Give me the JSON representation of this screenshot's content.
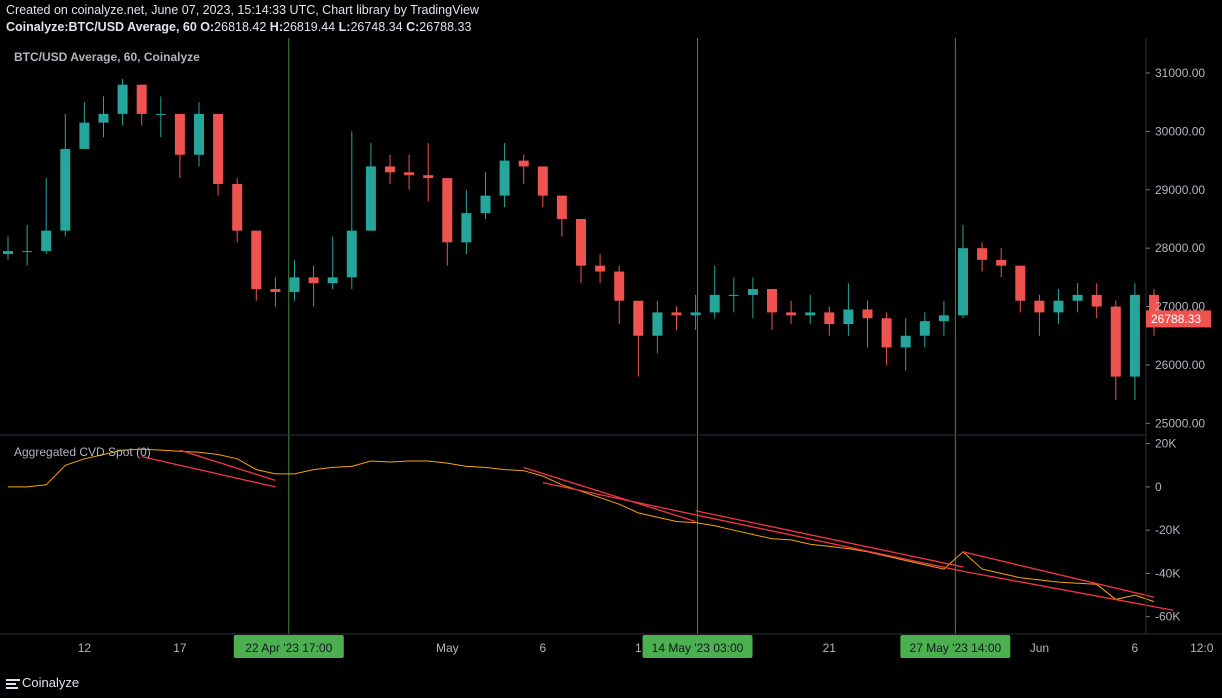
{
  "header": {
    "created_line": "Created on coinalyze.net, June 07, 2023, 15:14:33 UTC, Chart library by TradingView",
    "symbol": "Coinalyze:BTC/USD Average, 60",
    "o_label": "O:",
    "o_value": "26818.42",
    "h_label": "H:",
    "h_value": "26819.44",
    "l_label": "L:",
    "l_value": "26748.34",
    "c_label": "C:",
    "c_value": "26788.33"
  },
  "colors": {
    "background": "#000000",
    "up": "#26a69a",
    "down": "#ef5350",
    "cvd_line": "#f7a600",
    "trendline": "#f23645",
    "vline": "#4caf50",
    "date_badge": "#4caf50",
    "price_badge": "#ef5350"
  },
  "footer": {
    "logo_text": "Coinalyze",
    "logo_icon": "hamburger-icon"
  },
  "chart_data": [
    {
      "type": "candlestick",
      "title": "BTC/USD Average, 60, Coinalyze",
      "ylim": [
        24800,
        31600
      ],
      "y_ticks": [
        "31000.00",
        "30000.00",
        "29000.00",
        "28000.00",
        "27000.00",
        "26000.00",
        "25000.00"
      ],
      "last_price_label": "26788.33",
      "ohlc_last": {
        "open": 26818.42,
        "high": 26819.44,
        "low": 26748.34,
        "close": 26788.33
      },
      "x": [
        "Apr 8",
        "Apr 9",
        "Apr 10",
        "Apr 11",
        "Apr 12",
        "Apr 13",
        "Apr 14",
        "Apr 15",
        "Apr 16",
        "Apr 17",
        "Apr 18",
        "Apr 19",
        "Apr 20",
        "Apr 21",
        "Apr 22",
        "Apr 23",
        "Apr 24",
        "Apr 25",
        "Apr 26",
        "Apr 27",
        "Apr 28",
        "Apr 29",
        "Apr 30",
        "May 1",
        "May 2",
        "May 3",
        "May 4",
        "May 5",
        "May 6",
        "May 7",
        "May 8",
        "May 9",
        "May 10",
        "May 11",
        "May 12",
        "May 13",
        "May 14",
        "May 15",
        "May 16",
        "May 17",
        "May 18",
        "May 19",
        "May 20",
        "May 21",
        "May 22",
        "May 23",
        "May 24",
        "May 25",
        "May 26",
        "May 27",
        "May 28",
        "May 29",
        "May 30",
        "May 31",
        "Jun 1",
        "Jun 2",
        "Jun 3",
        "Jun 4",
        "Jun 5",
        "Jun 6",
        "Jun 7"
      ],
      "close": [
        27950,
        27950,
        28300,
        29700,
        30150,
        30300,
        30800,
        30300,
        30300,
        29600,
        30300,
        29100,
        28300,
        27300,
        27250,
        27500,
        27400,
        27500,
        28300,
        29400,
        29300,
        29250,
        29200,
        28100,
        28600,
        28900,
        29500,
        29400,
        28900,
        28500,
        27700,
        27600,
        27100,
        26500,
        26900,
        26850,
        26900,
        27200,
        27200,
        27300,
        26900,
        26850,
        26900,
        26700,
        26950,
        26800,
        26300,
        26500,
        26750,
        26850,
        28000,
        27800,
        27700,
        27100,
        26900,
        27100,
        27200,
        27000,
        25800,
        27200,
        26788
      ],
      "high": [
        28200,
        28400,
        29200,
        30300,
        30500,
        30600,
        30900,
        30800,
        30600,
        30300,
        30500,
        30300,
        29200,
        28100,
        27500,
        27800,
        27700,
        28200,
        30000,
        29800,
        29600,
        29600,
        29800,
        28700,
        29000,
        29300,
        29800,
        29600,
        29400,
        28900,
        28200,
        27900,
        27700,
        26900,
        27100,
        27000,
        27200,
        27700,
        27500,
        27500,
        27300,
        27100,
        27200,
        27000,
        27400,
        27100,
        26900,
        26800,
        26900,
        27100,
        28400,
        28100,
        28000,
        27700,
        27200,
        27300,
        27400,
        27400,
        27100,
        27400,
        27300
      ],
      "low": [
        27800,
        27700,
        27900,
        28200,
        29700,
        29900,
        30100,
        30100,
        29900,
        29200,
        29400,
        28900,
        28100,
        27100,
        27000,
        27100,
        27000,
        27300,
        27300,
        29000,
        29100,
        29000,
        28800,
        27700,
        27900,
        28500,
        28700,
        29100,
        28700,
        28200,
        27400,
        27400,
        26700,
        25800,
        26200,
        26600,
        26600,
        26800,
        26900,
        26800,
        26600,
        26700,
        26700,
        26500,
        26500,
        26300,
        26000,
        25900,
        26300,
        26500,
        26800,
        27600,
        27500,
        26900,
        26500,
        26700,
        26900,
        26800,
        25400,
        25400,
        26500
      ],
      "vertical_markers": [
        "22 Apr '23   17:00",
        "14 May '23   03:00",
        "27 May '23   14:00"
      ]
    },
    {
      "type": "line",
      "title": "Aggregated CVD Spot (0)",
      "ylim": [
        -68000,
        24000
      ],
      "y_ticks": [
        "20K",
        "0",
        "-20K",
        "-40K",
        "-60K"
      ],
      "series": [
        {
          "name": "Aggregated CVD Spot",
          "x": [
            "Apr 8",
            "Apr 9",
            "Apr 10",
            "Apr 11",
            "Apr 12",
            "Apr 13",
            "Apr 14",
            "Apr 15",
            "Apr 16",
            "Apr 17",
            "Apr 18",
            "Apr 19",
            "Apr 20",
            "Apr 21",
            "Apr 22",
            "Apr 23",
            "Apr 24",
            "Apr 25",
            "Apr 26",
            "Apr 27",
            "Apr 28",
            "Apr 29",
            "Apr 30",
            "May 1",
            "May 2",
            "May 3",
            "May 4",
            "May 5",
            "May 6",
            "May 7",
            "May 8",
            "May 9",
            "May 10",
            "May 11",
            "May 12",
            "May 13",
            "May 14",
            "May 15",
            "May 16",
            "May 17",
            "May 18",
            "May 19",
            "May 20",
            "May 21",
            "May 22",
            "May 23",
            "May 24",
            "May 25",
            "May 26",
            "May 27",
            "May 28",
            "May 29",
            "May 30",
            "May 31",
            "Jun 1",
            "Jun 2",
            "Jun 3",
            "Jun 4",
            "Jun 5",
            "Jun 6",
            "Jun 7"
          ],
          "values": [
            0,
            0,
            1000,
            10000,
            13000,
            15000,
            17000,
            17500,
            17000,
            16500,
            16000,
            15000,
            13000,
            8000,
            6000,
            6000,
            8000,
            9000,
            9500,
            12000,
            11500,
            12000,
            12000,
            11000,
            9500,
            9000,
            8000,
            7500,
            5000,
            1000,
            -2000,
            -5000,
            -8000,
            -12000,
            -14000,
            -16000,
            -16500,
            -18000,
            -20000,
            -22000,
            -24000,
            -24500,
            -26500,
            -27500,
            -28500,
            -30000,
            -32000,
            -34000,
            -36000,
            -38000,
            -30000,
            -38000,
            -40000,
            -42000,
            -43000,
            -44000,
            -44500,
            -45000,
            -52000,
            -50000,
            -53000
          ]
        }
      ],
      "trendlines": [
        {
          "from": [
            "Apr 15",
            14000
          ],
          "to": [
            "Apr 22",
            0
          ]
        },
        {
          "from": [
            "Apr 17",
            17000
          ],
          "to": [
            "Apr 22",
            3000
          ]
        },
        {
          "from": [
            "May 6",
            2000
          ],
          "to": [
            "May 28",
            -39000
          ]
        },
        {
          "from": [
            "May 5",
            9000
          ],
          "to": [
            "May 14",
            -16000
          ]
        },
        {
          "from": [
            "May 14",
            -11000
          ],
          "to": [
            "May 28",
            -37000
          ]
        },
        {
          "from": [
            "May 28",
            -30000
          ],
          "to": [
            "Jun 7",
            -51000
          ]
        },
        {
          "from": [
            "May 28",
            -39000
          ],
          "to": [
            "Jun 8",
            -57000
          ]
        }
      ]
    }
  ],
  "x_axis": {
    "ticks": [
      {
        "label": "12",
        "date": "Apr 12"
      },
      {
        "label": "17",
        "date": "Apr 17"
      },
      {
        "label": "12:00",
        "date": "Apr 24.5"
      },
      {
        "label": "May",
        "date": "May 1"
      },
      {
        "label": "6",
        "date": "May 6"
      },
      {
        "label": "1",
        "date": "May 11"
      },
      {
        "label": "21",
        "date": "May 21"
      },
      {
        "label": "Jun",
        "date": "Jun 1"
      },
      {
        "label": "6",
        "date": "Jun 6"
      },
      {
        "label": "12:0",
        "date": "Jun 9.5"
      }
    ]
  }
}
